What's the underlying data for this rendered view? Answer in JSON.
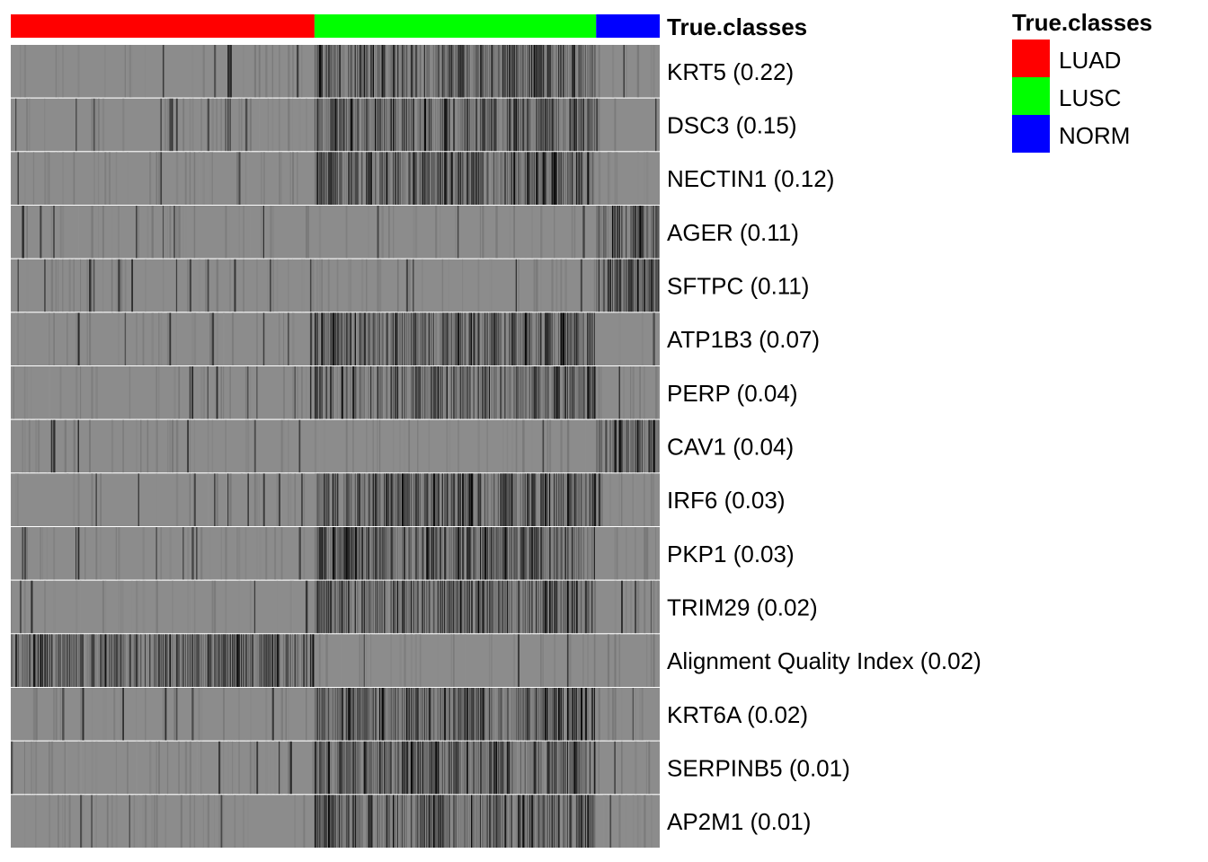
{
  "chart_data": {
    "type": "heatmap",
    "annotation": {
      "title": "True.classes",
      "classes": [
        {
          "name": "LUAD",
          "color": "#ff0000",
          "sample_fraction": 0.468
        },
        {
          "name": "LUSC",
          "color": "#00ff00",
          "sample_fraction": 0.434
        },
        {
          "name": "NORM",
          "color": "#0000ff",
          "sample_fraction": 0.098
        }
      ]
    },
    "rows": [
      {
        "label": "KRT5 (0.22)",
        "gene": "KRT5",
        "importance": 0.22,
        "high_in": "LUSC"
      },
      {
        "label": "DSC3 (0.15)",
        "gene": "DSC3",
        "importance": 0.15,
        "high_in": "LUSC"
      },
      {
        "label": "NECTIN1 (0.12)",
        "gene": "NECTIN1",
        "importance": 0.12,
        "high_in": "LUSC"
      },
      {
        "label": "AGER (0.11)",
        "gene": "AGER",
        "importance": 0.11,
        "high_in": "NORM"
      },
      {
        "label": "SFTPC (0.11)",
        "gene": "SFTPC",
        "importance": 0.11,
        "high_in": "NORM"
      },
      {
        "label": "ATP1B3 (0.07)",
        "gene": "ATP1B3",
        "importance": 0.07,
        "high_in": "LUSC"
      },
      {
        "label": "PERP (0.04)",
        "gene": "PERP",
        "importance": 0.04,
        "high_in": "LUSC"
      },
      {
        "label": "CAV1 (0.04)",
        "gene": "CAV1",
        "importance": 0.04,
        "high_in": "NORM"
      },
      {
        "label": "IRF6 (0.03)",
        "gene": "IRF6",
        "importance": 0.03,
        "high_in": "LUSC"
      },
      {
        "label": "PKP1 (0.03)",
        "gene": "PKP1",
        "importance": 0.03,
        "high_in": "LUSC"
      },
      {
        "label": "TRIM29 (0.02)",
        "gene": "TRIM29",
        "importance": 0.02,
        "high_in": "LUSC"
      },
      {
        "label": "Alignment Quality Index (0.02)",
        "gene": "Alignment Quality Index",
        "importance": 0.02,
        "high_in": "LUAD"
      },
      {
        "label": "KRT6A (0.02)",
        "gene": "KRT6A",
        "importance": 0.02,
        "high_in": "LUSC"
      },
      {
        "label": "SERPINB5 (0.01)",
        "gene": "SERPINB5",
        "importance": 0.01,
        "high_in": "LUSC"
      },
      {
        "label": "AP2M1 (0.01)",
        "gene": "AP2M1",
        "importance": 0.01,
        "high_in": "LUSC"
      }
    ],
    "color_scale": {
      "low": "#8c8c8c",
      "high": "#000000"
    },
    "legend": {
      "title": "True.classes",
      "position": "top-right"
    }
  }
}
